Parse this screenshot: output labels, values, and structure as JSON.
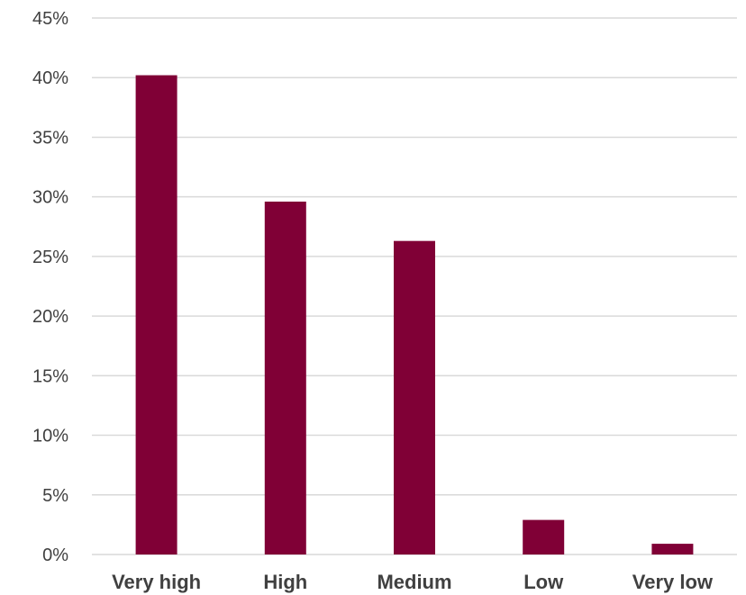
{
  "chart_data": {
    "type": "bar",
    "categories": [
      "Very high",
      "High",
      "Medium",
      "Low",
      "Very low"
    ],
    "values": [
      40.2,
      29.6,
      26.3,
      2.9,
      0.9
    ],
    "ylim": [
      0,
      45
    ],
    "yticks": [
      0,
      5,
      10,
      15,
      20,
      25,
      30,
      35,
      40,
      45
    ],
    "ytick_labels": [
      "0%",
      "5%",
      "10%",
      "15%",
      "20%",
      "25%",
      "30%",
      "35%",
      "40%",
      "45%"
    ],
    "grid": true,
    "legend": false,
    "bar_color": "#800036"
  }
}
